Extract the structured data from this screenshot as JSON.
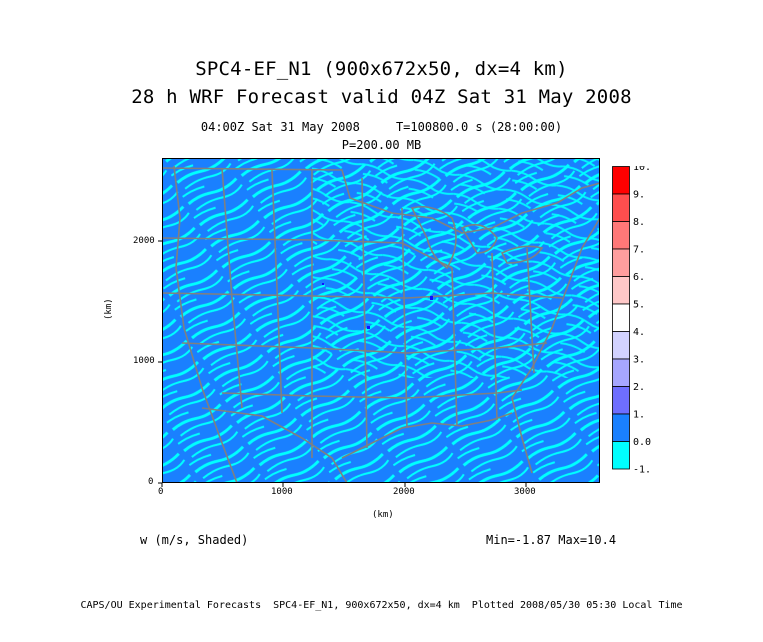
{
  "title_line1": "SPC4-EF_N1 (900x672x50, dx=4 km)",
  "title_line2": "28 h WRF Forecast valid 04Z Sat 31 May 2008",
  "subtitle_time": "04:00Z Sat 31 May 2008     T=100800.0 s (28:00:00)",
  "subtitle_level": "P=200.00 MB",
  "axes": {
    "x_label": "(km)",
    "y_label": "(km)",
    "x_ticks": [
      "0",
      "1000",
      "2000",
      "3000"
    ],
    "y_ticks": [
      "0",
      "1000",
      "2000"
    ],
    "x_range": [
      0,
      3600
    ],
    "y_range": [
      0,
      2688
    ]
  },
  "colorbar": {
    "labels": [
      "10.",
      "9.",
      "8.",
      "7.",
      "6.",
      "5.",
      "4.",
      "3.",
      "2.",
      "1.",
      "0.0",
      "-1."
    ],
    "colors": [
      "#ff0000",
      "#ff4e4e",
      "#ff7878",
      "#ff9e9e",
      "#ffc8c8",
      "#ffffff",
      "#d2d2ff",
      "#a6a6ff",
      "#6e6eff",
      "#1010ff",
      "#1a80ff",
      "#00ffff"
    ]
  },
  "field_label": "w (m/s, Shaded)",
  "min_max": "Min=-1.87 Max=10.4",
  "footer": "CAPS/OU Experimental Forecasts  SPC4-EF_N1, 900x672x50, dx=4 km  Plotted 2008/05/30 05:30 Local Time",
  "colors": {
    "field_low": "#00ffff",
    "field_mid": "#1a80ff",
    "boundaries": "#808080"
  }
}
